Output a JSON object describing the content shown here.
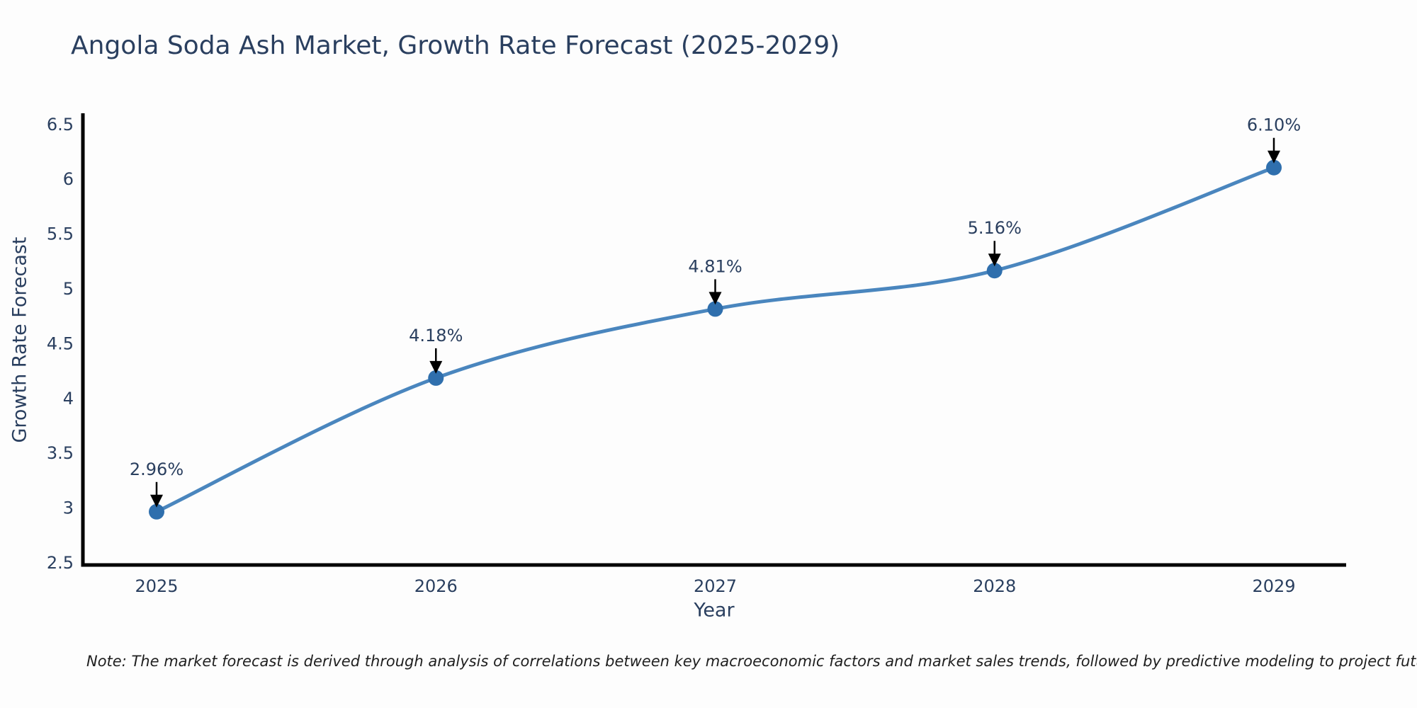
{
  "title": "Angola Soda Ash Market, Growth Rate Forecast (2025-2029)",
  "note": "Note: The market forecast is derived through analysis of correlations between key macroeconomic factors and market sales trends, followed by predictive modeling to project future sales",
  "chart_data": {
    "type": "line",
    "title": "Angola Soda Ash Market, Growth Rate Forecast (2025-2029)",
    "xlabel": "Year",
    "ylabel": "Growth Rate Forecast",
    "x": [
      2025,
      2026,
      2027,
      2028,
      2029
    ],
    "values": [
      2.96,
      4.18,
      4.81,
      5.16,
      6.1
    ],
    "point_labels": [
      "2.96%",
      "4.18%",
      "4.81%",
      "5.16%",
      "6.10%"
    ],
    "yticks": [
      6.5,
      6,
      5.5,
      5,
      4.5,
      4,
      3.5,
      3,
      2.5
    ],
    "ylim": [
      2.46,
      6.62
    ],
    "grid": false,
    "legend": "none",
    "smooth": true,
    "colors": {
      "line": "#4a86be",
      "marker": "#2f6fad",
      "axis": "#000000",
      "text": "#2a3f5f",
      "annotation_arrow": "#000000",
      "note_text": "#1f1f1f",
      "background": "#fdfdfd"
    }
  }
}
